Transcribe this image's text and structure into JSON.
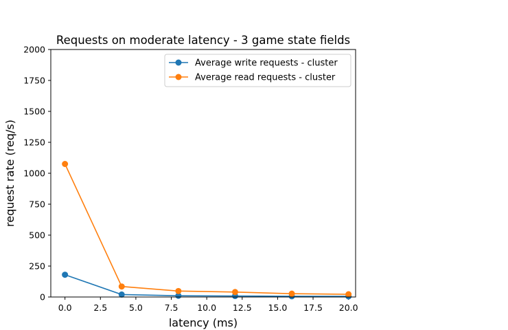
{
  "chart_data": {
    "type": "line",
    "title": "Requests on moderate latency - 3 game state fields",
    "xlabel": "latency (ms)",
    "ylabel": "request rate (req/s)",
    "xlim": [
      -1,
      20.5
    ],
    "ylim": [
      0,
      2000
    ],
    "xticks": [
      "0.0",
      "2.5",
      "5.0",
      "7.5",
      "10.0",
      "12.5",
      "15.0",
      "17.5",
      "20.0"
    ],
    "yticks": [
      "0",
      "250",
      "500",
      "750",
      "1000",
      "1250",
      "1500",
      "1750",
      "2000"
    ],
    "x": [
      0,
      4,
      8,
      12,
      16,
      20
    ],
    "series": [
      {
        "name": "Average write requests - cluster",
        "color": "#1f77b4",
        "values": [
          180,
          20,
          10,
          8,
          6,
          5
        ]
      },
      {
        "name": "Average read requests - cluster",
        "color": "#ff7f0e",
        "values": [
          1075,
          85,
          48,
          40,
          27,
          22
        ]
      }
    ],
    "legend_position": "top-right",
    "grid": false
  }
}
